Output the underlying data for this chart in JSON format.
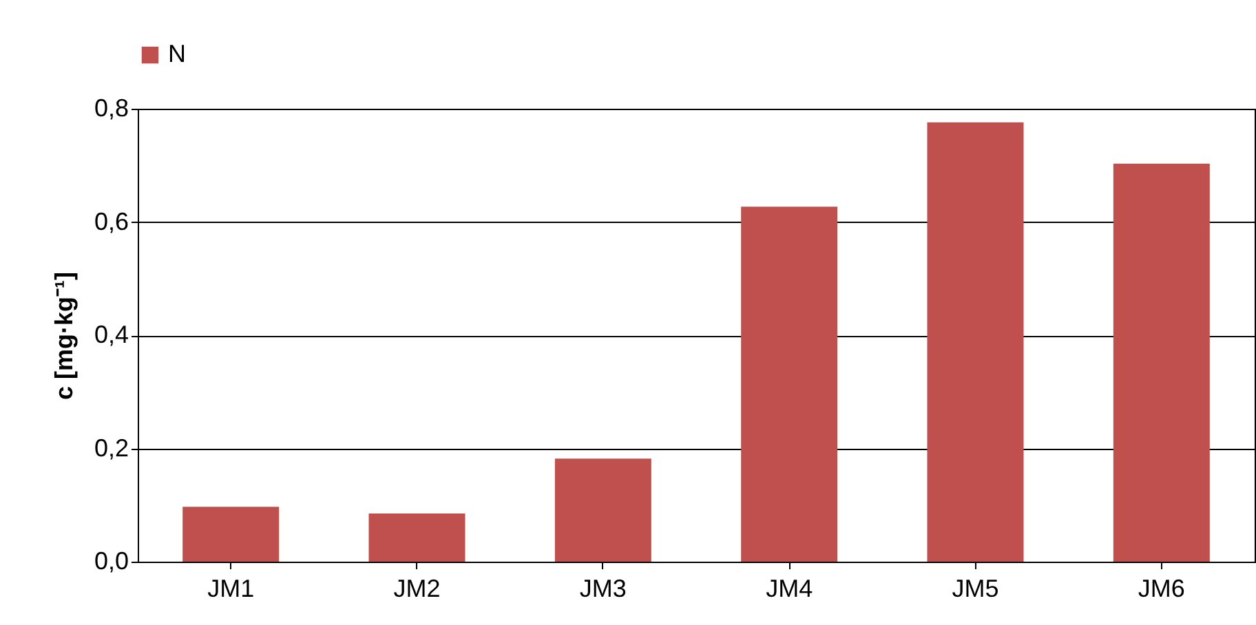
{
  "chart_data": {
    "type": "bar",
    "ylabel": "c [mg·kg⁻¹]",
    "categories": [
      "JM1",
      "JM2",
      "JM3",
      "JM4",
      "JM5",
      "JM6"
    ],
    "series": [
      {
        "name": "N",
        "color": "#c0504d",
        "values": [
          0.097,
          0.085,
          0.182,
          0.627,
          0.776,
          0.703
        ]
      }
    ],
    "ylim": [
      0,
      0.8
    ],
    "yticks": [
      {
        "value": 0,
        "label": "0,0"
      },
      {
        "value": 0.2,
        "label": "0,2"
      },
      {
        "value": 0.4,
        "label": "0,4"
      },
      {
        "value": 0.6,
        "label": "0,6"
      },
      {
        "value": 0.8,
        "label": "0,8"
      }
    ],
    "grid": "y",
    "legend": "top"
  }
}
